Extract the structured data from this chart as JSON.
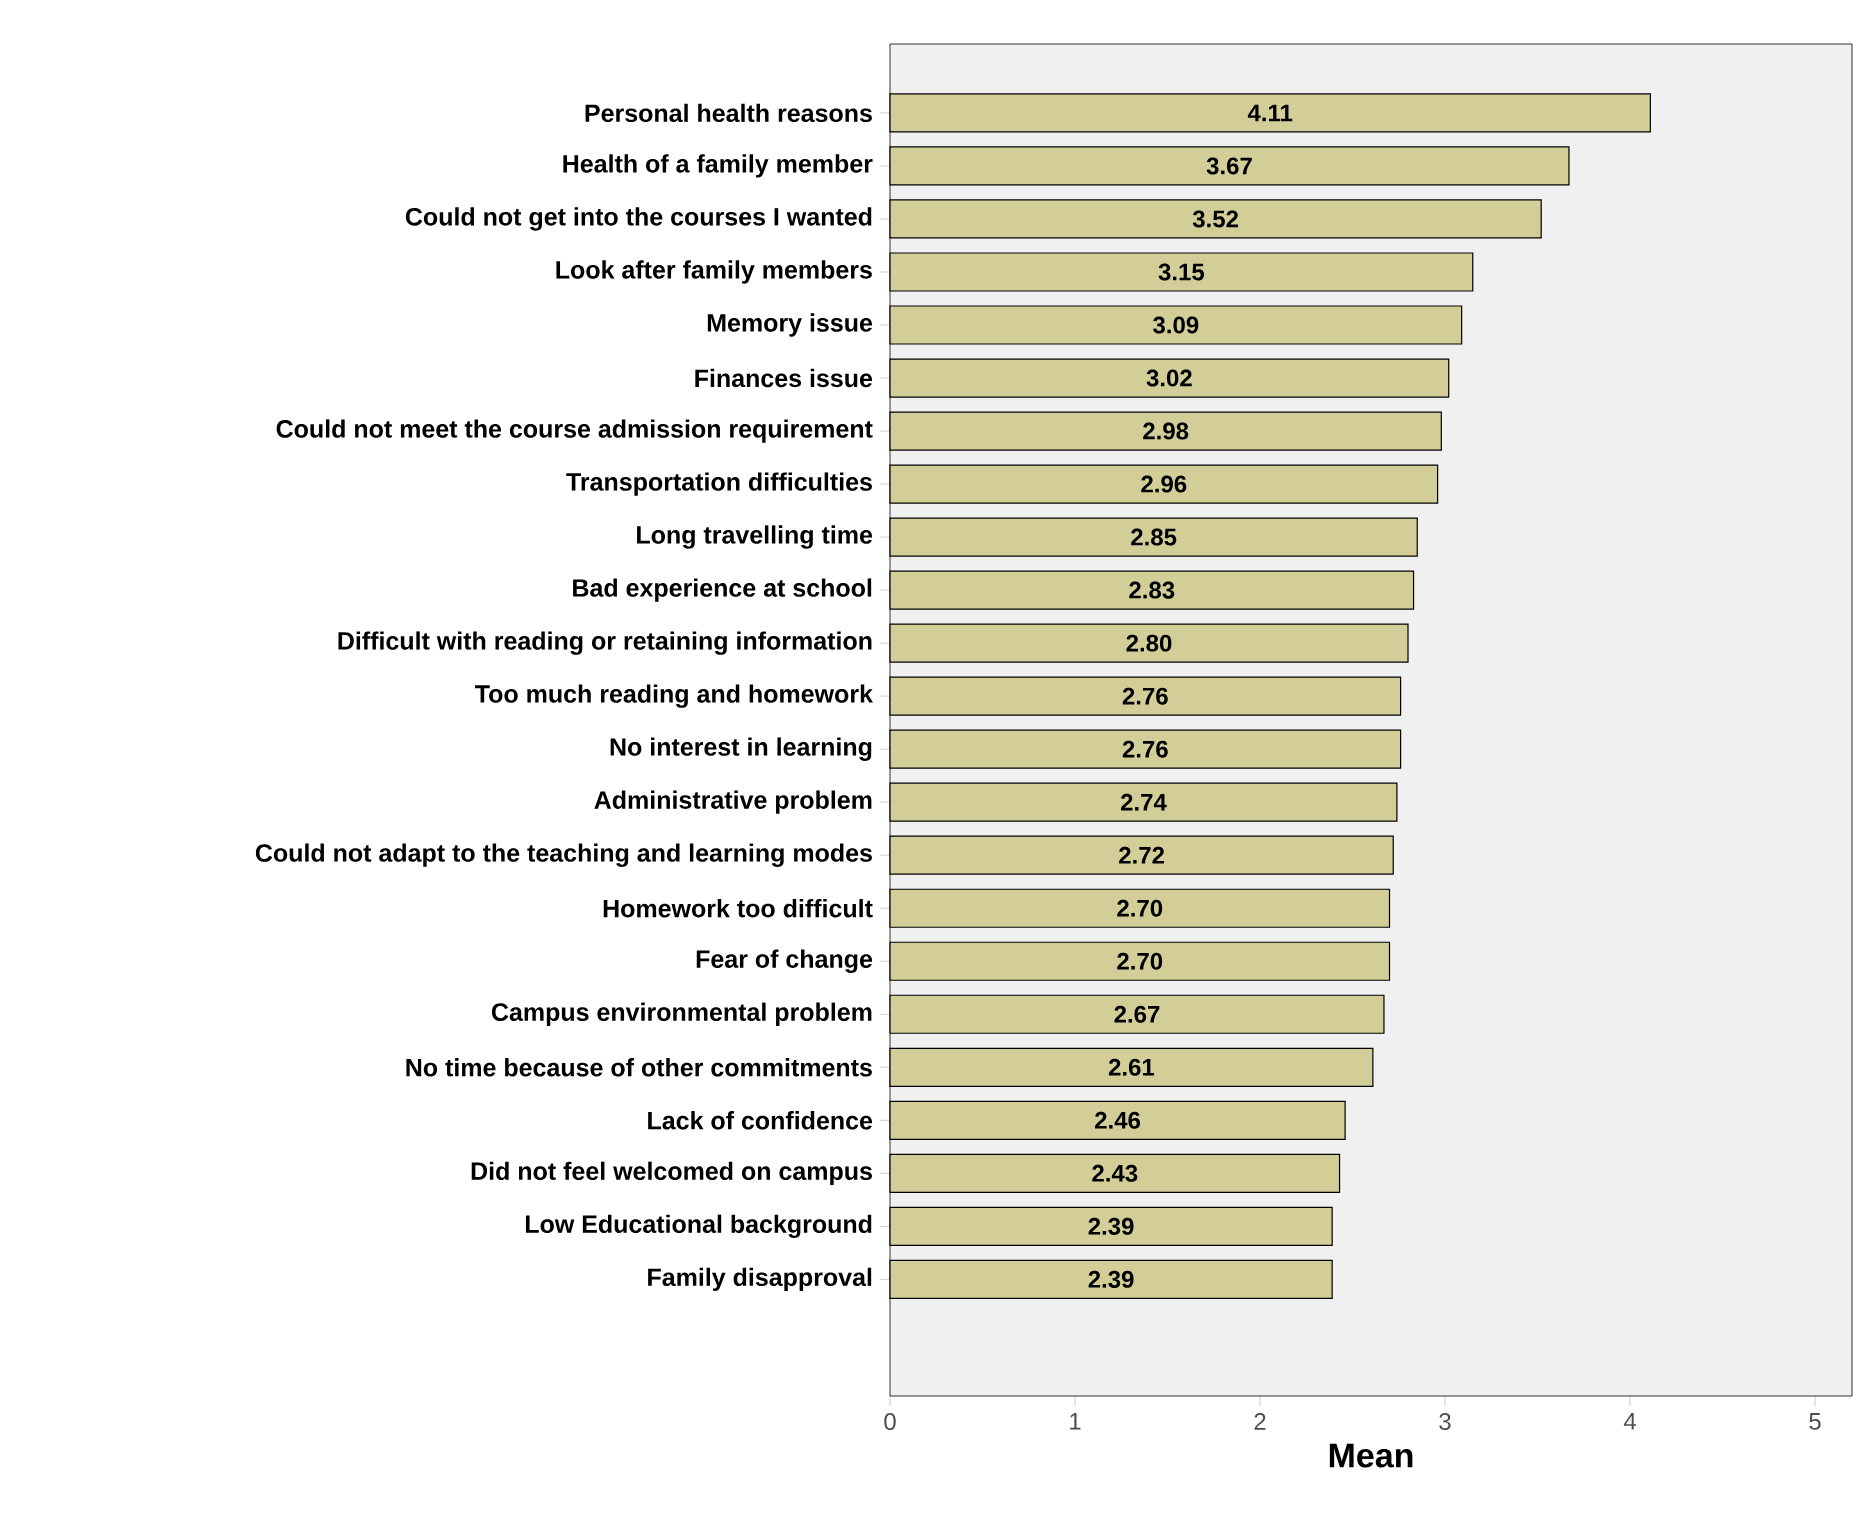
{
  "chart_data": {
    "type": "bar",
    "orientation": "horizontal",
    "xlabel": "Mean",
    "categories": [
      "Personal health reasons",
      "Health of a family member",
      "Could not get into the courses I wanted",
      "Look after family members",
      "Memory issue",
      "Finances issue",
      "Could not meet the course admission requirement",
      "Transportation difficulties",
      "Long travelling time",
      "Bad experience at school",
      "Difficult with reading or retaining information",
      "Too much reading and homework",
      "No interest in learning",
      "Administrative problem",
      "Could not adapt to the teaching and learning modes",
      "Homework too difficult",
      "Fear of change",
      "Campus environmental problem",
      "No time because of other commitments",
      "Lack of confidence",
      "Did not feel welcomed on campus",
      "Low Educational background",
      "Family disapproval"
    ],
    "values": [
      4.11,
      3.67,
      3.52,
      3.15,
      3.09,
      3.02,
      2.98,
      2.96,
      2.85,
      2.83,
      2.8,
      2.76,
      2.76,
      2.74,
      2.72,
      2.7,
      2.7,
      2.67,
      2.61,
      2.46,
      2.43,
      2.39,
      2.39
    ],
    "value_labels": [
      "4.11",
      "3.67",
      "3.52",
      "3.15",
      "3.09",
      "3.02",
      "2.98",
      "2.96",
      "2.85",
      "2.83",
      "2.80",
      "2.76",
      "2.76",
      "2.74",
      "2.72",
      "2.70",
      "2.70",
      "2.67",
      "2.61",
      "2.46",
      "2.43",
      "2.39",
      "2.39"
    ],
    "color": "#d3ce98",
    "xlim": [
      0,
      5.2
    ],
    "xticks": [
      0,
      1,
      2,
      3,
      4,
      5
    ],
    "grid": false
  }
}
